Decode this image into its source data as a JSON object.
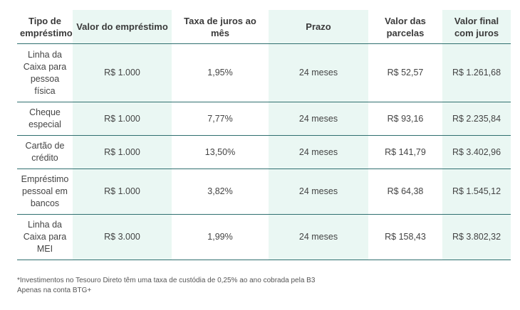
{
  "table": {
    "headers": [
      "Tipo de empréstimo",
      "Valor do empréstimo",
      "Taxa de juros ao mês",
      "Prazo",
      "Valor das parcelas",
      "Valor final com juros"
    ],
    "rows": [
      [
        "Linha da Caixa para pessoa física",
        "R$ 1.000",
        "1,95%",
        "24 meses",
        "R$ 52,57",
        "R$ 1.261,68"
      ],
      [
        "Cheque especial",
        "R$ 1.000",
        "7,77%",
        "24 meses",
        "R$ 93,16",
        "R$ 2.235,84"
      ],
      [
        "Cartão de crédito",
        "R$ 1.000",
        "13,50%",
        "24 meses",
        "R$ 141,79",
        "R$ 3.402,96"
      ],
      [
        "Empréstimo pessoal em bancos",
        "R$ 1.000",
        "3,82%",
        "24 meses",
        "R$ 64,38",
        "R$ 1.545,12"
      ],
      [
        "Linha da Caixa para MEI",
        "R$ 3.000",
        "1,99%",
        "24 meses",
        "R$ 158,43",
        "R$ 3.802,32"
      ]
    ]
  },
  "footnotes": {
    "line1": "*Investimentos no Tesouro Direto têm uma taxa de custódia de 0,25% ao ano cobrada pela B3",
    "line2": "Apenas na conta BTG+"
  },
  "colors": {
    "shaded_column": "#eaf7f3",
    "row_border": "#2f6f6f"
  }
}
